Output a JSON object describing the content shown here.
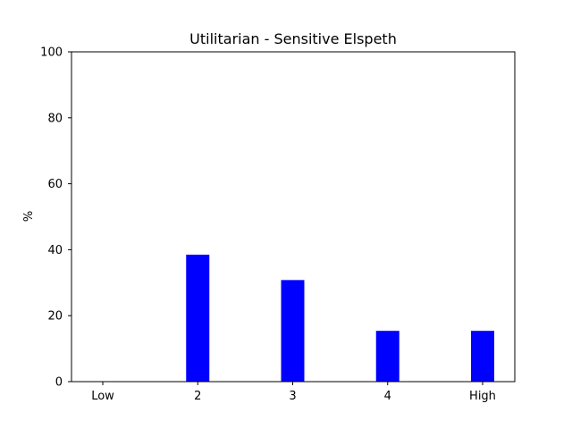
{
  "chart_data": {
    "type": "bar",
    "title": "Utilitarian - Sensitive Elspeth",
    "xlabel": "",
    "ylabel": "%",
    "categories": [
      "Low",
      "2",
      "3",
      "4",
      "High"
    ],
    "values": [
      0,
      38.5,
      30.8,
      15.4,
      15.4
    ],
    "ylim": [
      0,
      100
    ],
    "yticks": [
      0,
      20,
      40,
      60,
      80,
      100
    ],
    "bar_color": "#0000ff",
    "grid": false
  }
}
